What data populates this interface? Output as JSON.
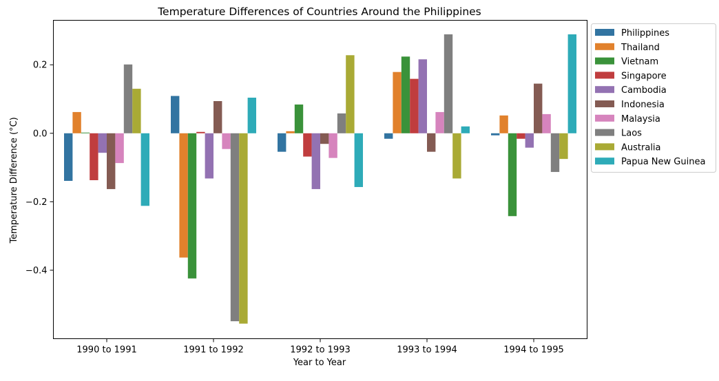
{
  "chart_data": {
    "type": "bar",
    "title": "Temperature Differences of Countries Around the Philippines",
    "xlabel": "Year to Year",
    "ylabel": "Temperature Difference (°C)",
    "categories": [
      "1990 to 1991",
      "1991 to 1992",
      "1992 to 1993",
      "1993 to 1994",
      "1994 to 1995"
    ],
    "ylim": [
      -0.6,
      0.33
    ],
    "yticks": [
      -0.4,
      -0.2,
      0.0,
      0.2
    ],
    "ytick_labels": [
      "−0.4",
      "−0.2",
      "0.0",
      "0.2"
    ],
    "legend_position": "outside-right-top",
    "grid": false,
    "series": [
      {
        "name": "Philippines",
        "color": "#3274a1",
        "values": [
          -0.139,
          0.109,
          -0.054,
          -0.016,
          -0.006
        ]
      },
      {
        "name": "Thailand",
        "color": "#e1812c",
        "values": [
          0.062,
          -0.363,
          0.006,
          0.179,
          0.052
        ]
      },
      {
        "name": "Vietnam",
        "color": "#3a923a",
        "values": [
          0.002,
          -0.424,
          0.084,
          0.224,
          -0.242
        ]
      },
      {
        "name": "Singapore",
        "color": "#c03d3e",
        "values": [
          -0.137,
          0.004,
          -0.068,
          0.159,
          -0.016
        ]
      },
      {
        "name": "Cambodia",
        "color": "#9372b2",
        "values": [
          -0.057,
          -0.132,
          -0.163,
          0.216,
          -0.042
        ]
      },
      {
        "name": "Indonesia",
        "color": "#845b53",
        "values": [
          -0.163,
          0.094,
          -0.031,
          -0.054,
          0.145
        ]
      },
      {
        "name": "Malaysia",
        "color": "#d684bd",
        "values": [
          -0.087,
          -0.046,
          -0.072,
          0.062,
          0.056
        ]
      },
      {
        "name": "Laos",
        "color": "#7f7f7f",
        "values": [
          0.201,
          -0.549,
          0.058,
          0.289,
          -0.113
        ]
      },
      {
        "name": "Australia",
        "color": "#a9aa35",
        "values": [
          0.13,
          -0.556,
          0.228,
          -0.132,
          -0.075
        ]
      },
      {
        "name": "Papua New Guinea",
        "color": "#2eabb8",
        "values": [
          -0.212,
          0.104,
          -0.157,
          0.02,
          0.289
        ]
      }
    ]
  }
}
